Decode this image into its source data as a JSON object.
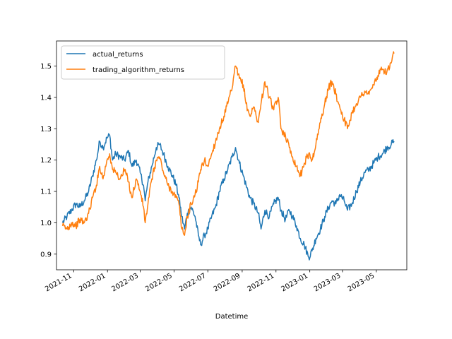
{
  "chart_data": {
    "type": "line",
    "title": "",
    "xlabel": "Datetime",
    "ylabel": "",
    "xlim": [
      "2021-10-01",
      "2023-06-25"
    ],
    "ylim": [
      0.85,
      1.58
    ],
    "x_ticks": [
      "2021-11",
      "2022-01",
      "2022-03",
      "2022-05",
      "2022-07",
      "2022-09",
      "2022-11",
      "2023-01",
      "2023-03",
      "2023-05"
    ],
    "y_ticks": [
      0.9,
      1.0,
      1.1,
      1.2,
      1.3,
      1.4,
      1.5
    ],
    "y_tick_labels": [
      "0.9",
      "1.0",
      "1.1",
      "1.2",
      "1.3",
      "1.4",
      "1.5"
    ],
    "grid": false,
    "legend_position": "top-left",
    "series": [
      {
        "name": "actual_returns",
        "color": "#1f77b4",
        "points": [
          [
            "2021-10-12",
            1.0
          ],
          [
            "2021-10-20",
            1.02
          ],
          [
            "2021-10-28",
            1.04
          ],
          [
            "2021-11-05",
            1.06
          ],
          [
            "2021-11-12",
            1.05
          ],
          [
            "2021-11-20",
            1.07
          ],
          [
            "2021-11-28",
            1.1
          ],
          [
            "2021-12-05",
            1.15
          ],
          [
            "2021-12-12",
            1.2
          ],
          [
            "2021-12-18",
            1.26
          ],
          [
            "2021-12-24",
            1.24
          ],
          [
            "2021-12-31",
            1.27
          ],
          [
            "2022-01-05",
            1.28
          ],
          [
            "2022-01-10",
            1.2
          ],
          [
            "2022-01-16",
            1.22
          ],
          [
            "2022-01-24",
            1.21
          ],
          [
            "2022-02-01",
            1.2
          ],
          [
            "2022-02-08",
            1.23
          ],
          [
            "2022-02-14",
            1.18
          ],
          [
            "2022-02-22",
            1.2
          ],
          [
            "2022-03-01",
            1.16
          ],
          [
            "2022-03-07",
            1.12
          ],
          [
            "2022-03-10",
            1.07
          ],
          [
            "2022-03-15",
            1.13
          ],
          [
            "2022-03-22",
            1.18
          ],
          [
            "2022-03-30",
            1.24
          ],
          [
            "2022-04-05",
            1.25
          ],
          [
            "2022-04-12",
            1.22
          ],
          [
            "2022-04-20",
            1.18
          ],
          [
            "2022-04-28",
            1.15
          ],
          [
            "2022-05-05",
            1.12
          ],
          [
            "2022-05-10",
            1.08
          ],
          [
            "2022-05-15",
            1.02
          ],
          [
            "2022-05-20",
            0.98
          ],
          [
            "2022-05-25",
            1.03
          ],
          [
            "2022-06-01",
            1.05
          ],
          [
            "2022-06-08",
            1.02
          ],
          [
            "2022-06-14",
            0.96
          ],
          [
            "2022-06-18",
            0.93
          ],
          [
            "2022-06-25",
            0.96
          ],
          [
            "2022-07-01",
            0.98
          ],
          [
            "2022-07-08",
            1.02
          ],
          [
            "2022-07-15",
            1.05
          ],
          [
            "2022-07-22",
            1.1
          ],
          [
            "2022-07-30",
            1.14
          ],
          [
            "2022-08-06",
            1.17
          ],
          [
            "2022-08-14",
            1.21
          ],
          [
            "2022-08-20",
            1.24
          ],
          [
            "2022-08-27",
            1.19
          ],
          [
            "2022-09-03",
            1.15
          ],
          [
            "2022-09-08",
            1.12
          ],
          [
            "2022-09-15",
            1.08
          ],
          [
            "2022-09-22",
            1.06
          ],
          [
            "2022-09-30",
            1.03
          ],
          [
            "2022-10-05",
            0.98
          ],
          [
            "2022-10-12",
            1.04
          ],
          [
            "2022-10-20",
            1.02
          ],
          [
            "2022-10-28",
            1.06
          ],
          [
            "2022-11-05",
            1.08
          ],
          [
            "2022-11-10",
            1.04
          ],
          [
            "2022-11-18",
            1.01
          ],
          [
            "2022-11-25",
            1.04
          ],
          [
            "2022-12-01",
            1.02
          ],
          [
            "2022-12-08",
            0.99
          ],
          [
            "2022-12-15",
            0.95
          ],
          [
            "2022-12-22",
            0.93
          ],
          [
            "2022-12-30",
            0.89
          ],
          [
            "2023-01-05",
            0.91
          ],
          [
            "2023-01-12",
            0.95
          ],
          [
            "2023-01-20",
            0.98
          ],
          [
            "2023-01-28",
            1.02
          ],
          [
            "2023-02-04",
            1.05
          ],
          [
            "2023-02-10",
            1.07
          ],
          [
            "2023-02-17",
            1.06
          ],
          [
            "2023-02-24",
            1.09
          ],
          [
            "2023-03-04",
            1.07
          ],
          [
            "2023-03-10",
            1.04
          ],
          [
            "2023-03-18",
            1.06
          ],
          [
            "2023-03-26",
            1.1
          ],
          [
            "2023-04-02",
            1.13
          ],
          [
            "2023-04-10",
            1.16
          ],
          [
            "2023-04-18",
            1.17
          ],
          [
            "2023-04-26",
            1.19
          ],
          [
            "2023-05-04",
            1.21
          ],
          [
            "2023-05-12",
            1.22
          ],
          [
            "2023-05-20",
            1.24
          ],
          [
            "2023-05-28",
            1.25
          ],
          [
            "2023-06-02",
            1.26
          ]
        ]
      },
      {
        "name": "trading_algorithm_returns",
        "color": "#ff7f0e",
        "points": [
          [
            "2021-10-12",
            0.99
          ],
          [
            "2021-10-20",
            0.98
          ],
          [
            "2021-10-28",
            1.0
          ],
          [
            "2021-11-05",
            0.99
          ],
          [
            "2021-11-12",
            1.01
          ],
          [
            "2021-11-20",
            1.0
          ],
          [
            "2021-11-28",
            1.03
          ],
          [
            "2021-12-05",
            1.08
          ],
          [
            "2021-12-12",
            1.12
          ],
          [
            "2021-12-18",
            1.18
          ],
          [
            "2021-12-24",
            1.14
          ],
          [
            "2021-12-31",
            1.2
          ],
          [
            "2022-01-05",
            1.22
          ],
          [
            "2022-01-10",
            1.17
          ],
          [
            "2022-01-16",
            1.16
          ],
          [
            "2022-01-24",
            1.14
          ],
          [
            "2022-02-01",
            1.17
          ],
          [
            "2022-02-08",
            1.13
          ],
          [
            "2022-02-14",
            1.08
          ],
          [
            "2022-02-22",
            1.14
          ],
          [
            "2022-03-01",
            1.1
          ],
          [
            "2022-03-07",
            1.05
          ],
          [
            "2022-03-10",
            1.0
          ],
          [
            "2022-03-15",
            1.06
          ],
          [
            "2022-03-22",
            1.14
          ],
          [
            "2022-03-30",
            1.2
          ],
          [
            "2022-04-05",
            1.21
          ],
          [
            "2022-04-12",
            1.16
          ],
          [
            "2022-04-20",
            1.12
          ],
          [
            "2022-04-28",
            1.1
          ],
          [
            "2022-05-05",
            1.08
          ],
          [
            "2022-05-10",
            1.06
          ],
          [
            "2022-05-15",
            0.98
          ],
          [
            "2022-05-20",
            0.96
          ],
          [
            "2022-05-25",
            1.02
          ],
          [
            "2022-06-01",
            1.06
          ],
          [
            "2022-06-08",
            1.09
          ],
          [
            "2022-06-14",
            1.13
          ],
          [
            "2022-06-18",
            1.17
          ],
          [
            "2022-06-25",
            1.2
          ],
          [
            "2022-07-01",
            1.18
          ],
          [
            "2022-07-08",
            1.22
          ],
          [
            "2022-07-15",
            1.26
          ],
          [
            "2022-07-22",
            1.3
          ],
          [
            "2022-07-30",
            1.34
          ],
          [
            "2022-08-06",
            1.38
          ],
          [
            "2022-08-14",
            1.43
          ],
          [
            "2022-08-20",
            1.5
          ],
          [
            "2022-08-27",
            1.46
          ],
          [
            "2022-09-03",
            1.44
          ],
          [
            "2022-09-08",
            1.38
          ],
          [
            "2022-09-15",
            1.34
          ],
          [
            "2022-09-22",
            1.37
          ],
          [
            "2022-09-30",
            1.32
          ],
          [
            "2022-10-05",
            1.38
          ],
          [
            "2022-10-12",
            1.45
          ],
          [
            "2022-10-20",
            1.4
          ],
          [
            "2022-10-28",
            1.36
          ],
          [
            "2022-11-05",
            1.4
          ],
          [
            "2022-11-10",
            1.3
          ],
          [
            "2022-11-18",
            1.28
          ],
          [
            "2022-11-25",
            1.24
          ],
          [
            "2022-12-01",
            1.21
          ],
          [
            "2022-12-08",
            1.18
          ],
          [
            "2022-12-15",
            1.15
          ],
          [
            "2022-12-22",
            1.19
          ],
          [
            "2022-12-30",
            1.22
          ],
          [
            "2023-01-05",
            1.2
          ],
          [
            "2023-01-12",
            1.25
          ],
          [
            "2023-01-20",
            1.32
          ],
          [
            "2023-01-28",
            1.38
          ],
          [
            "2023-02-04",
            1.43
          ],
          [
            "2023-02-10",
            1.45
          ],
          [
            "2023-02-17",
            1.41
          ],
          [
            "2023-02-24",
            1.37
          ],
          [
            "2023-03-04",
            1.33
          ],
          [
            "2023-03-10",
            1.3
          ],
          [
            "2023-03-18",
            1.35
          ],
          [
            "2023-03-26",
            1.38
          ],
          [
            "2023-04-02",
            1.4
          ],
          [
            "2023-04-10",
            1.42
          ],
          [
            "2023-04-18",
            1.41
          ],
          [
            "2023-04-26",
            1.44
          ],
          [
            "2023-05-04",
            1.47
          ],
          [
            "2023-05-12",
            1.49
          ],
          [
            "2023-05-20",
            1.48
          ],
          [
            "2023-05-28",
            1.51
          ],
          [
            "2023-06-02",
            1.54
          ]
        ]
      }
    ]
  }
}
